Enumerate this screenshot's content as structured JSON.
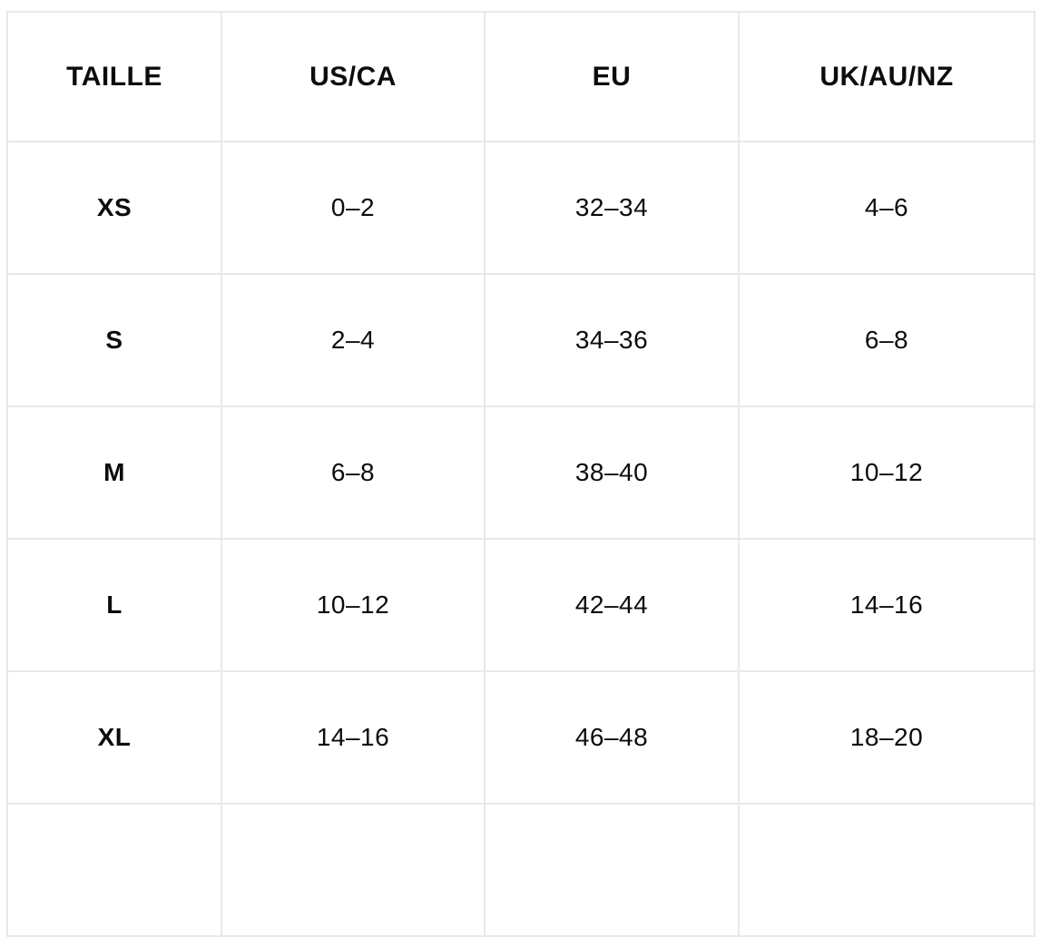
{
  "table": {
    "title": "size-conversion-chart",
    "headers": {
      "size": "TAILLE",
      "us_ca": "US/CA",
      "eu": "EU",
      "uk_au_nz": "UK/AU/NZ"
    },
    "rows": [
      {
        "size": "XS",
        "us_ca": "0–2",
        "eu": "32–34",
        "uk_au_nz": "4–6"
      },
      {
        "size": "S",
        "us_ca": "2–4",
        "eu": "34–36",
        "uk_au_nz": "6–8"
      },
      {
        "size": "M",
        "us_ca": "6–8",
        "eu": "38–40",
        "uk_au_nz": "10–12"
      },
      {
        "size": "L",
        "us_ca": "10–12",
        "eu": "42–44",
        "uk_au_nz": "14–16"
      },
      {
        "size": "XL",
        "us_ca": "14–16",
        "eu": "46–48",
        "uk_au_nz": "18–20"
      }
    ],
    "partial_row_visible": true
  },
  "colors": {
    "background": "#ffffff",
    "cell_background": "#ffffff",
    "border": "#e8e8e9",
    "text": "#0c0c0c"
  }
}
